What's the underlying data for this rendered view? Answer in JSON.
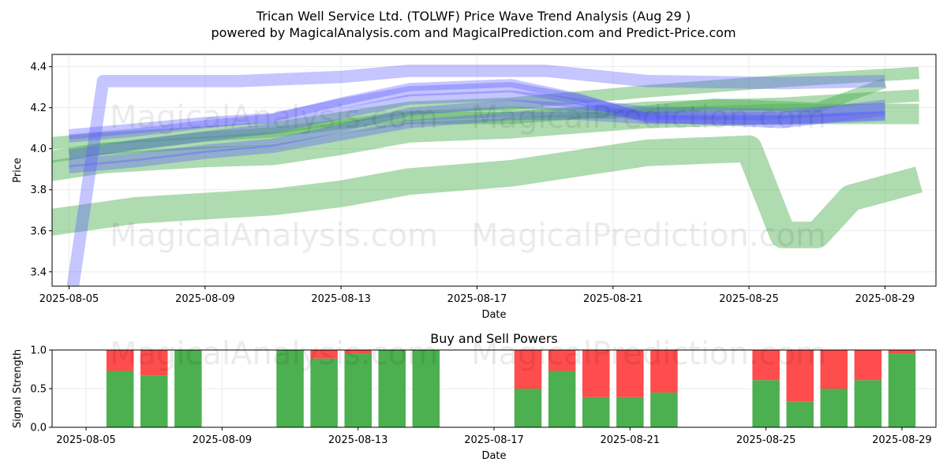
{
  "title_line1": "Trican Well Service Ltd. (TOLWF) Price Wave Trend Analysis (Aug 29 )",
  "title_line2": "powered by MagicalAnalysis.com and MagicalPrediction.com and Predict-Price.com",
  "watermarks": [
    "MagicalAnalysis.com",
    "MagicalPrediction.com"
  ],
  "chart_data": [
    {
      "type": "area",
      "title": "",
      "xlabel": "Date",
      "ylabel": "Price",
      "xlim": [
        "2025-08-04 12:00",
        "2025-08-30 12:00"
      ],
      "ylim": [
        3.33,
        4.46
      ],
      "x_ticks": [
        "2025-08-05",
        "2025-08-09",
        "2025-08-13",
        "2025-08-17",
        "2025-08-21",
        "2025-08-25",
        "2025-08-29"
      ],
      "y_ticks": [
        3.4,
        3.6,
        3.8,
        4.0,
        4.2,
        4.4
      ],
      "y_tick_labels": [
        "3.4",
        "3.6",
        "3.8",
        "4.0",
        "4.2",
        "4.4"
      ],
      "grid": true,
      "colors": {
        "green_bands": "#4caf50",
        "blue_bands": "#5a5aff"
      },
      "green_bands": [
        {
          "x": [
            "2025-08-04",
            "2025-08-07",
            "2025-08-09",
            "2025-08-11",
            "2025-08-13",
            "2025-08-15",
            "2025-08-18",
            "2025-08-22",
            "2025-08-25",
            "2025-08-26",
            "2025-08-27",
            "2025-08-28",
            "2025-08-30"
          ],
          "y": [
            3.63,
            3.7,
            3.72,
            3.74,
            3.78,
            3.84,
            3.88,
            3.98,
            4.0,
            3.58,
            3.58,
            3.76,
            3.85
          ],
          "width": 0.13
        },
        {
          "x": [
            "2025-08-04",
            "2025-08-06",
            "2025-08-09",
            "2025-08-11",
            "2025-08-13",
            "2025-08-15",
            "2025-08-18",
            "2025-08-22",
            "2025-08-26",
            "2025-08-30"
          ],
          "y": [
            3.88,
            3.93,
            3.96,
            3.97,
            4.02,
            4.08,
            4.1,
            4.15,
            4.17,
            4.17
          ],
          "width": 0.1
        },
        {
          "x": [
            "2025-08-04",
            "2025-08-06",
            "2025-08-09",
            "2025-08-11",
            "2025-08-13",
            "2025-08-15",
            "2025-08-18",
            "2025-08-22",
            "2025-08-26",
            "2025-08-30"
          ],
          "y": [
            3.95,
            4.0,
            4.03,
            4.05,
            4.1,
            4.15,
            4.15,
            4.2,
            4.22,
            4.26
          ],
          "width": 0.06
        },
        {
          "x": [
            "2025-08-04",
            "2025-08-06",
            "2025-08-09",
            "2025-08-11",
            "2025-08-13",
            "2025-08-15",
            "2025-08-18",
            "2025-08-22",
            "2025-08-26",
            "2025-08-30"
          ],
          "y": [
            4.02,
            4.05,
            4.08,
            4.1,
            4.15,
            4.2,
            4.22,
            4.28,
            4.33,
            4.37
          ],
          "width": 0.06
        },
        {
          "x": [
            "2025-08-05",
            "2025-08-07",
            "2025-08-09",
            "2025-08-11",
            "2025-08-13",
            "2025-08-15",
            "2025-08-18",
            "2025-08-21",
            "2025-08-24",
            "2025-08-27",
            "2025-08-29"
          ],
          "y": [
            3.98,
            4.02,
            4.06,
            4.08,
            4.12,
            4.16,
            4.18,
            4.17,
            4.22,
            4.2,
            4.32
          ],
          "width": 0.05
        }
      ],
      "blue_bands": [
        {
          "x": [
            "2025-08-05",
            "2025-08-06",
            "2025-08-07",
            "2025-08-10",
            "2025-08-13",
            "2025-08-15",
            "2025-08-19",
            "2025-08-22",
            "2025-08-26",
            "2025-08-29"
          ],
          "y": [
            3.2,
            4.33,
            4.33,
            4.33,
            4.35,
            4.38,
            4.38,
            4.33,
            4.32,
            4.33
          ],
          "width": 0.06
        },
        {
          "x": [
            "2025-08-05",
            "2025-08-07",
            "2025-08-09",
            "2025-08-11",
            "2025-08-13",
            "2025-08-15",
            "2025-08-18",
            "2025-08-20",
            "2025-08-22",
            "2025-08-26",
            "2025-08-29"
          ],
          "y": [
            4.07,
            4.1,
            4.13,
            4.15,
            4.22,
            4.28,
            4.3,
            4.24,
            4.15,
            4.14,
            4.16
          ],
          "width": 0.05
        },
        {
          "x": [
            "2025-08-05",
            "2025-08-07",
            "2025-08-09",
            "2025-08-11",
            "2025-08-13",
            "2025-08-15",
            "2025-08-18",
            "2025-08-20",
            "2025-08-22",
            "2025-08-26",
            "2025-08-29"
          ],
          "y": [
            4.05,
            4.08,
            4.12,
            4.15,
            4.23,
            4.3,
            4.32,
            4.25,
            4.15,
            4.12,
            4.18
          ],
          "width": 0.04
        },
        {
          "x": [
            "2025-08-05",
            "2025-08-07",
            "2025-08-09",
            "2025-08-11",
            "2025-08-13",
            "2025-08-15",
            "2025-08-18",
            "2025-08-20",
            "2025-08-22",
            "2025-08-26",
            "2025-08-29"
          ],
          "y": [
            3.97,
            4.02,
            4.06,
            4.1,
            4.17,
            4.24,
            4.26,
            4.22,
            4.18,
            4.17,
            4.2
          ],
          "width": 0.05
        },
        {
          "x": [
            "2025-08-05",
            "2025-08-07",
            "2025-08-09",
            "2025-08-11",
            "2025-08-13",
            "2025-08-15",
            "2025-08-18",
            "2025-08-20",
            "2025-08-22",
            "2025-08-26",
            "2025-08-29"
          ],
          "y": [
            3.93,
            3.96,
            4.0,
            4.03,
            4.1,
            4.18,
            4.22,
            4.2,
            4.16,
            4.16,
            4.22
          ],
          "width": 0.04
        },
        {
          "x": [
            "2025-08-05",
            "2025-08-07",
            "2025-08-09",
            "2025-08-11",
            "2025-08-13",
            "2025-08-15",
            "2025-08-18",
            "2025-08-20",
            "2025-08-22",
            "2025-08-26",
            "2025-08-29"
          ],
          "y": [
            3.9,
            3.93,
            3.97,
            4.0,
            4.06,
            4.12,
            4.16,
            4.16,
            4.14,
            4.14,
            4.16
          ],
          "width": 0.04
        }
      ]
    },
    {
      "type": "bar",
      "title": "Buy and Sell Powers",
      "xlabel": "Date",
      "ylabel": "Signal Strength",
      "ylim": [
        0,
        1
      ],
      "y_ticks": [
        0.0,
        0.5,
        1.0
      ],
      "y_tick_labels": [
        "0.0",
        "0.5",
        "1.0"
      ],
      "x_ticks": [
        "2025-08-05",
        "2025-08-09",
        "2025-08-13",
        "2025-08-17",
        "2025-08-21",
        "2025-08-25",
        "2025-08-29"
      ],
      "colors": {
        "buy": "#4caf50",
        "sell": "#ff4c4c"
      },
      "dates": [
        "2025-08-06",
        "2025-08-07",
        "2025-08-08",
        "2025-08-11",
        "2025-08-12",
        "2025-08-13",
        "2025-08-14",
        "2025-08-15",
        "2025-08-18",
        "2025-08-19",
        "2025-08-20",
        "2025-08-21",
        "2025-08-22",
        "2025-08-25",
        "2025-08-26",
        "2025-08-27",
        "2025-08-28",
        "2025-08-29"
      ],
      "series": [
        {
          "values": [
            0.73,
            0.67,
            1.0,
            1.0,
            0.89,
            0.95,
            1.0,
            1.0,
            0.5,
            0.73,
            0.39,
            0.39,
            0.45,
            0.61,
            0.33,
            0.5,
            0.61,
            0.95
          ]
        },
        {
          "values": [
            0.27,
            0.33,
            0.0,
            0.0,
            0.11,
            0.05,
            0.0,
            0.0,
            0.5,
            0.27,
            0.61,
            0.61,
            0.55,
            0.39,
            0.67,
            0.5,
            0.39,
            0.05
          ]
        }
      ]
    }
  ]
}
